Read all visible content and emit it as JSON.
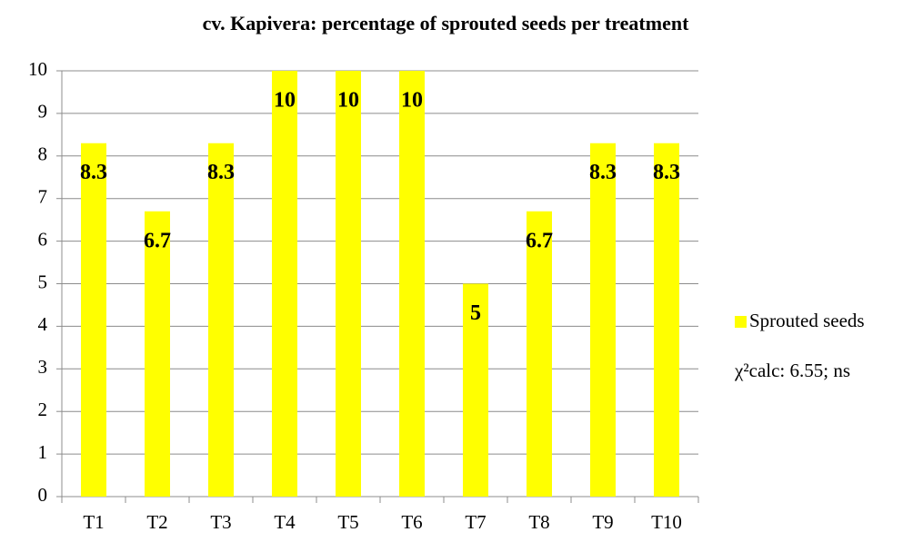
{
  "chart_data": {
    "type": "bar",
    "title": "cv. Kapivera: percentage of sprouted seeds per treatment",
    "categories": [
      "T1",
      "T2",
      "T3",
      "T4",
      "T5",
      "T6",
      "T7",
      "T8",
      "T9",
      "T10"
    ],
    "series": [
      {
        "name": "Sprouted seeds",
        "color": "#ffff00",
        "values": [
          8.3,
          6.7,
          8.3,
          10,
          10,
          10,
          5,
          6.7,
          8.3,
          8.3
        ]
      }
    ],
    "ylim": [
      0,
      10
    ],
    "yticks": [
      0,
      1,
      2,
      3,
      4,
      5,
      6,
      7,
      8,
      9,
      10
    ],
    "grid": true,
    "legend": "right",
    "annotation": "χ²calc:  6.55; ns"
  }
}
